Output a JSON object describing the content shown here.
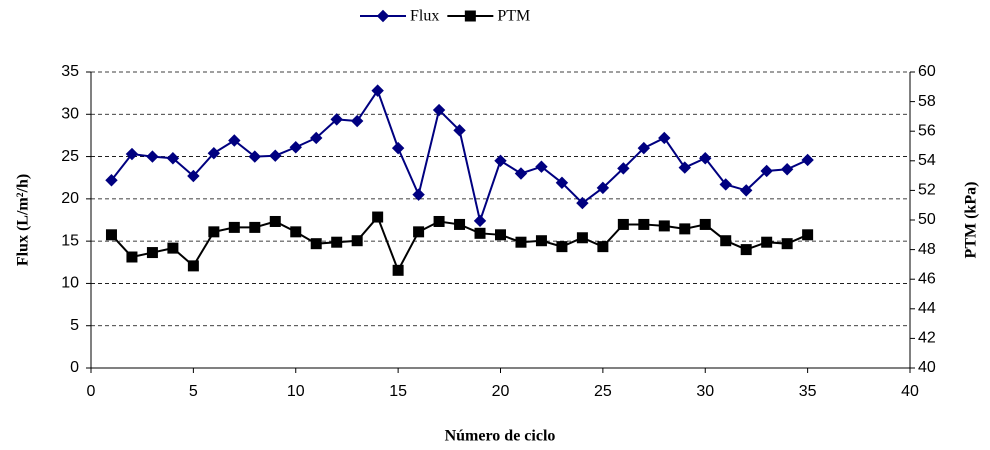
{
  "chart_data": {
    "type": "line",
    "xlabel": "Número de ciclo",
    "ylabel": "Flux (L/m²/h)",
    "y2label": "PTM (kPa)",
    "x": [
      1,
      2,
      3,
      4,
      5,
      6,
      7,
      8,
      9,
      10,
      11,
      12,
      13,
      14,
      15,
      16,
      17,
      18,
      19,
      20,
      21,
      22,
      23,
      24,
      25,
      26,
      27,
      28,
      29,
      30,
      31,
      32,
      33,
      34,
      35
    ],
    "series": [
      {
        "name": "Flux",
        "color": "#000080",
        "marker": "diamond",
        "values": [
          22.2,
          25.3,
          25.0,
          24.8,
          22.7,
          25.4,
          26.9,
          25.0,
          25.1,
          26.1,
          27.2,
          29.4,
          29.2,
          32.8,
          26.0,
          20.5,
          30.5,
          28.1,
          17.4,
          24.5,
          23.0,
          23.8,
          21.9,
          19.5,
          21.3,
          23.6,
          26.0,
          27.2,
          23.7,
          24.8,
          21.7,
          21.0,
          23.3,
          23.5,
          24.6
        ]
      },
      {
        "name": "PTM",
        "color": "#000000",
        "marker": "square",
        "axis": "y2",
        "values": [
          49.0,
          47.5,
          47.8,
          48.1,
          46.9,
          49.2,
          49.5,
          49.5,
          49.9,
          49.2,
          48.4,
          48.5,
          48.6,
          50.2,
          46.6,
          49.2,
          49.9,
          49.7,
          49.1,
          49.0,
          48.5,
          48.6,
          48.2,
          48.8,
          48.2,
          49.7,
          49.7,
          49.6,
          49.4,
          49.7,
          48.6,
          48.0,
          48.5,
          48.4,
          49.0
        ]
      }
    ],
    "xlim": [
      0,
      40
    ],
    "xticks": [
      0,
      5,
      10,
      15,
      20,
      25,
      30,
      35,
      40
    ],
    "ylim": [
      0,
      35
    ],
    "yticks": [
      0,
      5,
      10,
      15,
      20,
      25,
      30,
      35
    ],
    "y2lim": [
      40,
      60
    ],
    "y2ticks": [
      40,
      42,
      44,
      46,
      48,
      50,
      52,
      54,
      56,
      58,
      60
    ],
    "grid": true,
    "legend": "top"
  }
}
